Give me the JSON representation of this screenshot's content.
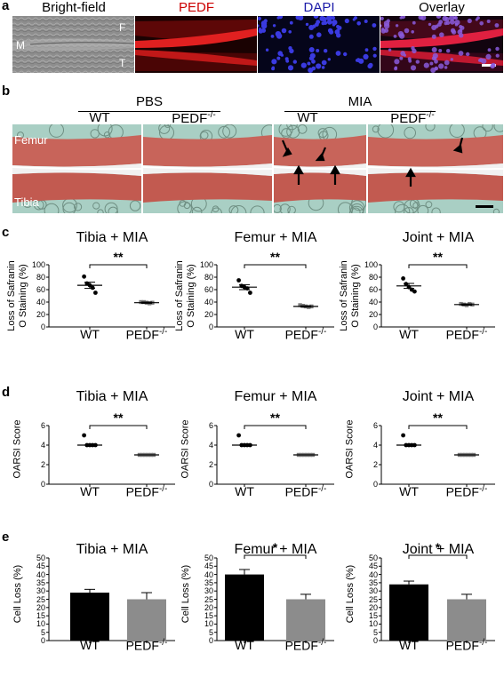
{
  "panel_labels": {
    "a": "a",
    "b": "b",
    "c": "c",
    "d": "d",
    "e": "e"
  },
  "panel_a": {
    "headers": [
      "Bright-field",
      "PEDF",
      "DAPI",
      "Overlay"
    ],
    "header_colors": [
      "#000000",
      "#cc0000",
      "#1a1aa8",
      "#000000"
    ],
    "labels": {
      "m": "M",
      "f": "F",
      "t": "T"
    }
  },
  "panel_b": {
    "group_pbs": "PBS",
    "group_mia": "MIA",
    "col_labels": [
      "WT",
      "PEDF",
      "WT",
      "PEDF"
    ],
    "ko_sup": "-/-",
    "femur": "Femur",
    "tibia": "Tibia"
  },
  "genotypes": {
    "wt": "WT",
    "ko": "PEDF",
    "ko_sup": "-/-"
  },
  "chart_data": [
    {
      "panel": "c",
      "type": "scatter",
      "title": "Tibia + MIA",
      "ylabel": "Loss of Safranin O Staining (%)",
      "ylim": [
        0,
        100
      ],
      "yticks": [
        0,
        20,
        40,
        60,
        80,
        100
      ],
      "categories": [
        "WT",
        "PEDF-/-"
      ],
      "points": [
        [
          81,
          70,
          67,
          63,
          55
        ],
        [
          40,
          40,
          39,
          38,
          39
        ]
      ],
      "means": [
        67,
        39
      ],
      "sems": [
        5,
        1
      ],
      "significance": "**"
    },
    {
      "panel": "c",
      "type": "scatter",
      "title": "Femur + MIA",
      "ylabel": "Loss of Safranin O Staining (%)",
      "ylim": [
        0,
        100
      ],
      "yticks": [
        0,
        20,
        40,
        60,
        80,
        100
      ],
      "categories": [
        "WT",
        "PEDF-/-"
      ],
      "points": [
        [
          75,
          66,
          64,
          62,
          55
        ],
        [
          35,
          34,
          33,
          32,
          33
        ]
      ],
      "means": [
        64,
        33
      ],
      "sems": [
        4,
        1
      ],
      "significance": "**"
    },
    {
      "panel": "c",
      "type": "scatter",
      "title": "Joint + MIA",
      "ylabel": "Loss of Safranin O Staining (%)",
      "ylim": [
        0,
        100
      ],
      "yticks": [
        0,
        20,
        40,
        60,
        80,
        100
      ],
      "categories": [
        "WT",
        "PEDF-/-"
      ],
      "points": [
        [
          78,
          69,
          64,
          60,
          57
        ],
        [
          37,
          36,
          35,
          37,
          36
        ]
      ],
      "means": [
        66,
        36
      ],
      "sems": [
        4,
        1
      ],
      "significance": "**"
    },
    {
      "panel": "d",
      "type": "scatter",
      "title": "Tibia + MIA",
      "ylabel": "OARSI Score",
      "ylim": [
        0,
        6
      ],
      "yticks": [
        0,
        2,
        4,
        6
      ],
      "categories": [
        "WT",
        "PEDF-/-"
      ],
      "points": [
        [
          5,
          4,
          4,
          4,
          4
        ],
        [
          3,
          3,
          3,
          3,
          3,
          3
        ]
      ],
      "means": [
        4,
        3
      ],
      "significance": "**"
    },
    {
      "panel": "d",
      "type": "scatter",
      "title": "Femur + MIA",
      "ylabel": "OARSI Score",
      "ylim": [
        0,
        6
      ],
      "yticks": [
        0,
        2,
        4,
        6
      ],
      "categories": [
        "WT",
        "PEDF-/-"
      ],
      "points": [
        [
          5,
          4,
          4,
          4,
          4
        ],
        [
          3,
          3,
          3,
          3,
          3,
          3
        ]
      ],
      "means": [
        4,
        3
      ],
      "significance": "**"
    },
    {
      "panel": "d",
      "type": "scatter",
      "title": "Joint + MIA",
      "ylabel": "OARSI Score",
      "ylim": [
        0,
        6
      ],
      "yticks": [
        0,
        2,
        4,
        6
      ],
      "categories": [
        "WT",
        "PEDF-/-"
      ],
      "points": [
        [
          5,
          4,
          4,
          4,
          4
        ],
        [
          3,
          3,
          3,
          3,
          3,
          3
        ]
      ],
      "means": [
        4,
        3
      ],
      "significance": "**"
    },
    {
      "panel": "e",
      "type": "bar",
      "title": "Tibia + MIA",
      "ylabel": "Cell Loss (%)",
      "ylim": [
        0,
        50
      ],
      "yticks": [
        0,
        5,
        10,
        15,
        20,
        25,
        30,
        35,
        40,
        45,
        50
      ],
      "categories": [
        "WT",
        "PEDF-/-"
      ],
      "values": [
        29,
        25
      ],
      "errors": [
        2,
        4
      ],
      "colors": [
        "#000000",
        "#8c8c8c"
      ],
      "significance": ""
    },
    {
      "panel": "e",
      "type": "bar",
      "title": "Femur + MIA",
      "ylabel": "Cell Loss (%)",
      "ylim": [
        0,
        50
      ],
      "yticks": [
        0,
        5,
        10,
        15,
        20,
        25,
        30,
        35,
        40,
        45,
        50
      ],
      "categories": [
        "WT",
        "PEDF-/-"
      ],
      "values": [
        40,
        25
      ],
      "errors": [
        3,
        3
      ],
      "colors": [
        "#000000",
        "#8c8c8c"
      ],
      "significance": "*"
    },
    {
      "panel": "e",
      "type": "bar",
      "title": "Joint + MIA",
      "ylabel": "Cell Loss (%)",
      "ylim": [
        0,
        50
      ],
      "yticks": [
        0,
        5,
        10,
        15,
        20,
        25,
        30,
        35,
        40,
        45,
        50
      ],
      "categories": [
        "WT",
        "PEDF-/-"
      ],
      "values": [
        34,
        25
      ],
      "errors": [
        2,
        3
      ],
      "colors": [
        "#000000",
        "#8c8c8c"
      ],
      "significance": "*"
    }
  ]
}
